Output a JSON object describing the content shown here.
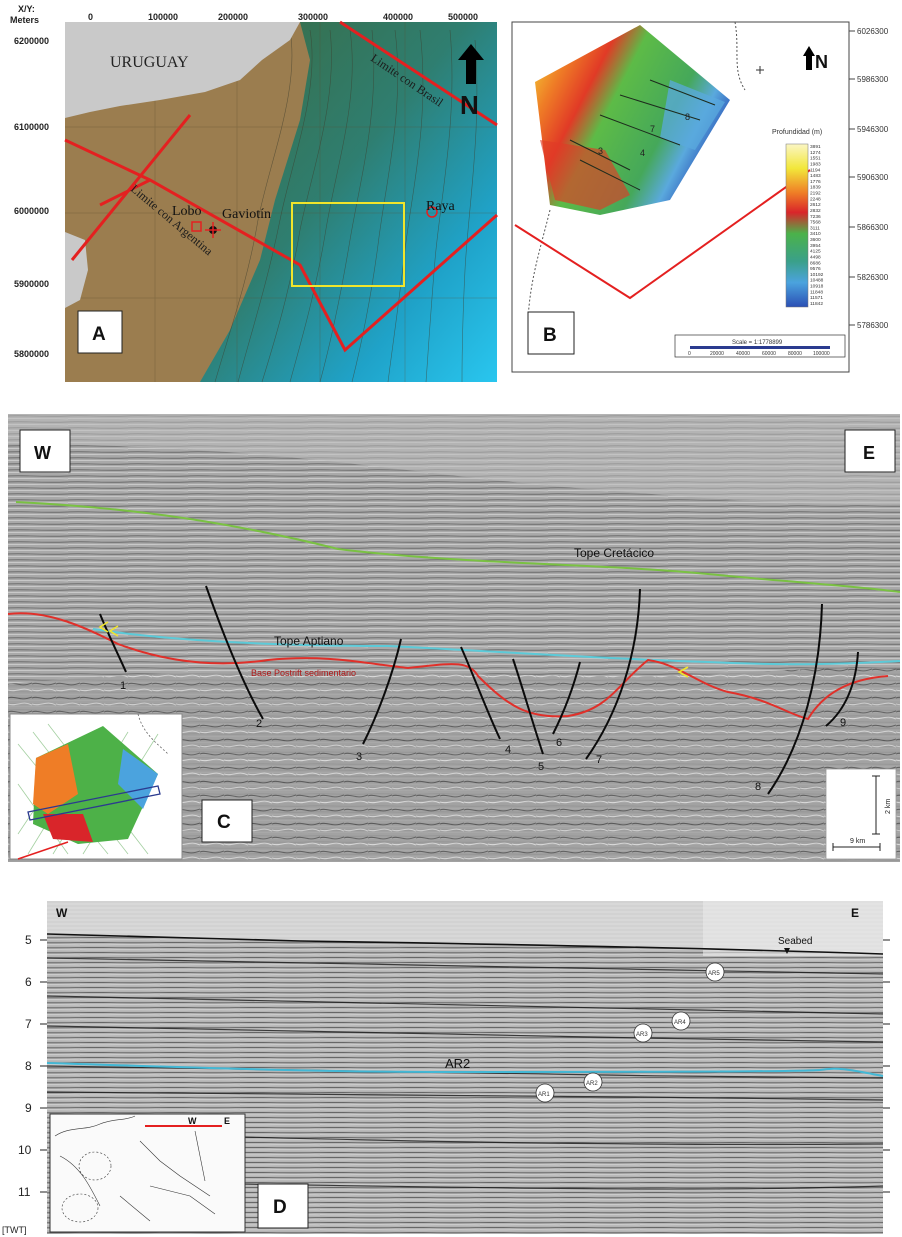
{
  "panelA": {
    "label": "A",
    "axis_corner_line1": "X/Y:",
    "axis_corner_line2": "Meters",
    "x_ticks": [
      "0",
      "100000",
      "200000",
      "300000",
      "400000",
      "500000"
    ],
    "y_ticks": [
      "6200000",
      "6100000",
      "6000000",
      "5900000",
      "5800000"
    ],
    "country": "URUGUAY",
    "brazil_border": "Limite con Brasil",
    "argentina_border": "Limite con Argentina",
    "wells": [
      "Lobo",
      "Gaviotín",
      "Raya"
    ],
    "north": "N"
  },
  "panelB": {
    "label": "B",
    "north": "N",
    "y_ticks": [
      "6026300",
      "5986300",
      "5946300",
      "5906300",
      "5866300",
      "5826300",
      "5786300"
    ],
    "colorbar_title": "Profundidad (m)",
    "colorbar_values": [
      "3891",
      "1274",
      "1551",
      "1983",
      "1194",
      "1483",
      "1776",
      "1839",
      "2192",
      "2248",
      "2612",
      "2832",
      "7236",
      "7568",
      "3111",
      "3410",
      "3600",
      "3954",
      "4125",
      "4498",
      "8686",
      "9576",
      "10192",
      "10488",
      "10918",
      "11848",
      "11571",
      "11842"
    ],
    "fault_numbers": [
      "3",
      "4",
      "7",
      "8"
    ],
    "scale_text": "Scale = 1:1778899",
    "scale_ticks": [
      "0",
      "20000",
      "40000",
      "60000",
      "80000",
      "100000"
    ]
  },
  "panelC": {
    "label": "C",
    "left_dir": "W",
    "right_dir": "E",
    "horizons": [
      "Tope Cretácico",
      "Tope Aptiano",
      "Base Postrift sedimentario"
    ],
    "faults": [
      "1",
      "2",
      "3",
      "4",
      "5",
      "6",
      "7",
      "8",
      "9"
    ],
    "scale_vertical": "2 km",
    "scale_horizontal": "9 km",
    "colors": {
      "cretaceous": "#7ac143",
      "aptian": "#5ccad8",
      "base": "#e0302a"
    }
  },
  "panelD": {
    "label": "D",
    "left_dir": "W",
    "right_dir": "E",
    "seabed": "Seabed",
    "horizon": "AR2",
    "y_unit": "[TWT]",
    "y_ticks": [
      "5",
      "6",
      "7",
      "8",
      "9",
      "10",
      "11"
    ],
    "markers": [
      "AR5",
      "AR4",
      "AR3",
      "AR2",
      "AR1"
    ],
    "inset_w": "W",
    "inset_e": "E"
  }
}
